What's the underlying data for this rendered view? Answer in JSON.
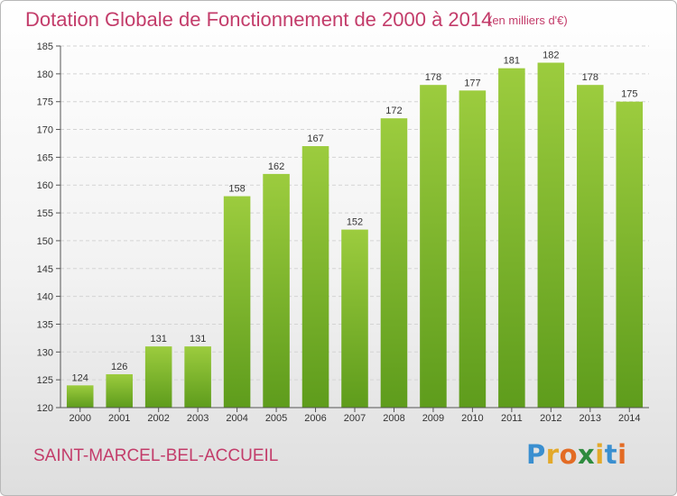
{
  "header": {
    "title": "Dotation Globale de Fonctionnement de 2000 à 2014",
    "unit": "(en milliers d'€)"
  },
  "footer": {
    "commune": "SAINT-MARCEL-BEL-ACCUEIL",
    "logo": "Proxiti"
  },
  "colors": {
    "title": "#c33c6a",
    "bar_top": "#9ccc3e",
    "bar_bottom": "#5e9c1c"
  },
  "chart_data": {
    "type": "bar",
    "categories": [
      "2000",
      "2001",
      "2002",
      "2003",
      "2004",
      "2005",
      "2006",
      "2007",
      "2008",
      "2009",
      "2010",
      "2011",
      "2012",
      "2013",
      "2014"
    ],
    "values": [
      124,
      126,
      131,
      131,
      158,
      162,
      167,
      152,
      172,
      178,
      177,
      181,
      182,
      178,
      175
    ],
    "ylim": [
      120,
      185
    ],
    "yticks": [
      120,
      125,
      130,
      135,
      140,
      145,
      150,
      155,
      160,
      165,
      170,
      175,
      180,
      185
    ],
    "grid": true,
    "data_labels": true
  }
}
